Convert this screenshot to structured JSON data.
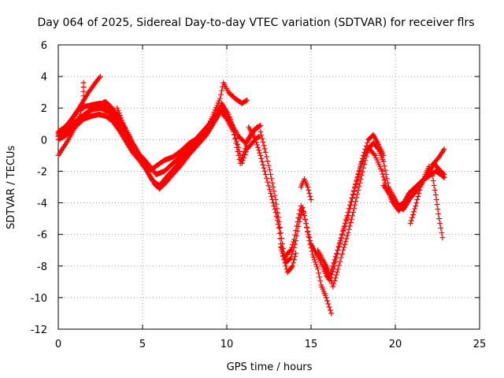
{
  "chart_data": {
    "type": "scatter",
    "title": "Day 064 of 2025, Sidereal Day-to-day VTEC variation (SDTVAR) for receiver flrs",
    "xlabel": "GPS time / hours",
    "ylabel": "SDTVAR / TECUs",
    "xlim": [
      0,
      25
    ],
    "ylim": [
      -12,
      6
    ],
    "xticks": [
      0,
      5,
      10,
      15,
      20,
      25
    ],
    "yticks": [
      -12,
      -10,
      -8,
      -6,
      -4,
      -2,
      0,
      2,
      4,
      6
    ],
    "grid": true,
    "marker": "plus",
    "color": "#ff0000",
    "series": [
      {
        "points": [
          [
            0,
            0.3
          ],
          [
            0.3,
            0.7
          ],
          [
            0.6,
            1.0
          ],
          [
            1.0,
            1.6
          ],
          [
            1.4,
            2.3
          ],
          [
            1.8,
            3.0
          ],
          [
            2.2,
            3.6
          ],
          [
            2.5,
            4.0
          ]
        ]
      },
      {
        "points": [
          [
            0,
            -1.0
          ],
          [
            0.3,
            -0.5
          ],
          [
            0.6,
            0.0
          ],
          [
            1.0,
            0.8
          ],
          [
            1.3,
            1.6
          ],
          [
            1.5,
            2.5
          ],
          [
            1.5,
            3.6
          ]
        ]
      },
      {
        "points": [
          [
            0,
            0.5
          ],
          [
            0.4,
            0.8
          ],
          [
            0.8,
            1.3
          ],
          [
            1.2,
            1.9
          ],
          [
            1.6,
            2.1
          ],
          [
            2.0,
            2.2
          ],
          [
            2.5,
            2.3
          ],
          [
            2.9,
            2.1
          ],
          [
            3.3,
            1.6
          ],
          [
            3.7,
            1.0
          ],
          [
            4.0,
            0.2
          ],
          [
            4.3,
            -0.5
          ],
          [
            4.7,
            -1.0
          ],
          [
            5.1,
            -1.6
          ],
          [
            5.5,
            -1.9
          ],
          [
            5.9,
            -1.6
          ],
          [
            6.3,
            -1.3
          ],
          [
            6.8,
            -1.1
          ],
          [
            7.3,
            -0.7
          ],
          [
            7.8,
            -0.2
          ],
          [
            8.3,
            0.1
          ],
          [
            8.8,
            0.6
          ],
          [
            9.2,
            1.6
          ],
          [
            9.6,
            2.6
          ],
          [
            9.8,
            3.6
          ],
          [
            10.1,
            3.0
          ],
          [
            10.5,
            2.6
          ],
          [
            10.9,
            2.3
          ],
          [
            11.2,
            2.5
          ]
        ]
      },
      {
        "points": [
          [
            0,
            0.0
          ],
          [
            0.5,
            0.3
          ],
          [
            1.0,
            0.8
          ],
          [
            1.5,
            1.3
          ],
          [
            2.0,
            1.5
          ],
          [
            2.4,
            1.6
          ],
          [
            2.8,
            1.5
          ],
          [
            3.2,
            1.2
          ],
          [
            3.6,
            0.6
          ],
          [
            4.0,
            -0.1
          ],
          [
            4.4,
            -0.8
          ],
          [
            4.8,
            -1.3
          ],
          [
            5.2,
            -1.9
          ],
          [
            5.6,
            -2.6
          ],
          [
            6.0,
            -2.9
          ],
          [
            6.4,
            -2.4
          ],
          [
            6.9,
            -1.8
          ],
          [
            7.4,
            -1.2
          ],
          [
            7.9,
            -0.6
          ],
          [
            8.4,
            0.0
          ],
          [
            8.9,
            0.5
          ],
          [
            9.3,
            1.2
          ],
          [
            9.7,
            1.9
          ],
          [
            10.0,
            1.7
          ],
          [
            10.3,
            1.0
          ],
          [
            10.7,
            0.2
          ],
          [
            11.1,
            -0.2
          ],
          [
            11.5,
            0.4
          ],
          [
            11.8,
            0.8
          ]
        ]
      },
      {
        "points": [
          [
            0,
            0.2
          ],
          [
            0.5,
            0.5
          ],
          [
            1.0,
            0.9
          ],
          [
            1.5,
            1.5
          ],
          [
            2.0,
            1.9
          ],
          [
            2.5,
            2.0
          ],
          [
            2.9,
            1.8
          ],
          [
            3.3,
            1.4
          ],
          [
            3.7,
            0.8
          ],
          [
            4.1,
            0.1
          ],
          [
            4.5,
            -0.6
          ],
          [
            4.9,
            -1.3
          ],
          [
            5.3,
            -2.0
          ],
          [
            5.7,
            -2.8
          ],
          [
            6.0,
            -3.1
          ],
          [
            6.4,
            -2.7
          ],
          [
            6.8,
            -2.2
          ],
          [
            7.3,
            -1.6
          ],
          [
            7.8,
            -0.9
          ],
          [
            8.3,
            -0.3
          ],
          [
            8.8,
            0.3
          ],
          [
            9.2,
            1.0
          ],
          [
            9.6,
            1.8
          ],
          [
            10.0,
            1.3
          ],
          [
            10.4,
            0.5
          ],
          [
            10.7,
            -0.5
          ],
          [
            10.9,
            -1.5
          ],
          [
            11.2,
            -0.6
          ],
          [
            11.6,
            -0.1
          ],
          [
            11.9,
            0.2
          ]
        ]
      },
      {
        "points": [
          [
            0,
            0.4
          ],
          [
            0.6,
            0.8
          ],
          [
            1.2,
            1.3
          ],
          [
            1.8,
            1.8
          ],
          [
            2.4,
            2.2
          ],
          [
            2.8,
            2.4
          ],
          [
            3.2,
            2.0
          ],
          [
            3.6,
            1.4
          ],
          [
            4.0,
            0.7
          ],
          [
            4.4,
            -0.2
          ],
          [
            4.8,
            -0.9
          ],
          [
            5.3,
            -1.5
          ],
          [
            5.8,
            -2.2
          ],
          [
            6.3,
            -2.0
          ],
          [
            6.8,
            -1.5
          ],
          [
            7.3,
            -1.0
          ],
          [
            7.8,
            -0.4
          ],
          [
            8.3,
            0.2
          ],
          [
            8.8,
            0.8
          ],
          [
            9.3,
            1.5
          ],
          [
            9.7,
            2.3
          ],
          [
            10.1,
            1.6
          ],
          [
            10.4,
            0.6
          ],
          [
            10.6,
            -0.5
          ],
          [
            10.8,
            -1.5
          ],
          [
            11.2,
            -0.2
          ],
          [
            11.6,
            0.6
          ],
          [
            12.0,
            0.9
          ]
        ]
      },
      {
        "points": [
          [
            3.5,
            2.0
          ],
          [
            4.0,
            0.6
          ],
          [
            4.3,
            0.0
          ],
          [
            4.7,
            -0.8
          ],
          [
            5.0,
            -1.5
          ]
        ]
      },
      {
        "points": [
          [
            11.3,
            0.8
          ],
          [
            11.7,
            0.0
          ],
          [
            12.0,
            -1.0
          ],
          [
            12.3,
            -2.2
          ],
          [
            12.6,
            -3.4
          ],
          [
            12.9,
            -4.6
          ],
          [
            13.1,
            -5.6
          ],
          [
            13.2,
            -6.6
          ],
          [
            13.4,
            -7.6
          ],
          [
            13.6,
            -7.2
          ],
          [
            13.8,
            -7.0
          ],
          [
            14.0,
            -6.3
          ],
          [
            14.2,
            -5.2
          ],
          [
            14.4,
            -4.2
          ],
          [
            14.6,
            -4.8
          ],
          [
            14.8,
            -5.8
          ],
          [
            15.0,
            -6.6
          ],
          [
            15.3,
            -7.2
          ],
          [
            15.6,
            -7.8
          ],
          [
            15.9,
            -8.6
          ],
          [
            16.1,
            -8.9
          ],
          [
            16.4,
            -8.0
          ],
          [
            16.6,
            -7.0
          ],
          [
            16.9,
            -5.8
          ],
          [
            17.2,
            -4.8
          ],
          [
            17.5,
            -3.5
          ],
          [
            17.8,
            -2.2
          ],
          [
            18.1,
            -1.0
          ],
          [
            18.4,
            0.0
          ],
          [
            18.7,
            0.3
          ],
          [
            19.0,
            -0.3
          ],
          [
            19.3,
            -1.0
          ]
        ]
      },
      {
        "points": [
          [
            12.0,
            0.5
          ],
          [
            12.3,
            -0.8
          ],
          [
            12.6,
            -2.2
          ],
          [
            12.9,
            -3.8
          ],
          [
            13.1,
            -5.2
          ],
          [
            13.3,
            -6.6
          ],
          [
            13.5,
            -7.8
          ],
          [
            13.8,
            -7.5
          ],
          [
            14.1,
            -6.4
          ],
          [
            14.3,
            -5.2
          ],
          [
            14.5,
            -4.3
          ],
          [
            14.7,
            -5.3
          ],
          [
            14.9,
            -6.4
          ],
          [
            15.1,
            -7.3
          ],
          [
            15.4,
            -8.2
          ],
          [
            15.6,
            -9.2
          ],
          [
            15.9,
            -10.0
          ],
          [
            16.2,
            -11.0
          ]
        ]
      },
      {
        "points": [
          [
            13.2,
            -6.8
          ],
          [
            13.4,
            -7.6
          ],
          [
            13.6,
            -8.4
          ],
          [
            13.9,
            -8.0
          ],
          [
            14.1,
            -7.2
          ]
        ]
      },
      {
        "points": [
          [
            14.4,
            -3.0
          ],
          [
            14.6,
            -2.5
          ],
          [
            14.8,
            -3.0
          ],
          [
            15.0,
            -3.8
          ]
        ]
      },
      {
        "points": [
          [
            15.4,
            -7.0
          ],
          [
            15.7,
            -7.6
          ],
          [
            16.0,
            -8.2
          ],
          [
            16.3,
            -9.3
          ],
          [
            16.6,
            -8.2
          ],
          [
            16.9,
            -7.0
          ],
          [
            17.2,
            -5.9
          ],
          [
            17.5,
            -4.6
          ],
          [
            17.8,
            -3.2
          ],
          [
            18.1,
            -1.8
          ],
          [
            18.4,
            -0.6
          ],
          [
            18.7,
            -0.2
          ],
          [
            19.0,
            -0.6
          ],
          [
            19.3,
            -1.4
          ],
          [
            19.6,
            -3.0
          ],
          [
            19.9,
            -3.6
          ],
          [
            20.2,
            -4.2
          ],
          [
            20.5,
            -4.0
          ],
          [
            20.8,
            -3.4
          ],
          [
            21.2,
            -3.0
          ],
          [
            21.6,
            -2.6
          ],
          [
            22.0,
            -2.3
          ],
          [
            22.4,
            -2.0
          ],
          [
            22.7,
            -2.2
          ],
          [
            22.9,
            -2.4
          ]
        ]
      },
      {
        "points": [
          [
            15.8,
            -8.0
          ],
          [
            16.1,
            -8.6
          ],
          [
            16.4,
            -7.6
          ],
          [
            16.8,
            -6.2
          ],
          [
            17.2,
            -4.6
          ],
          [
            17.6,
            -3.0
          ],
          [
            18.0,
            -1.5
          ],
          [
            18.4,
            -0.5
          ],
          [
            18.8,
            -1.0
          ],
          [
            19.2,
            -2.0
          ],
          [
            19.5,
            -3.1
          ],
          [
            19.8,
            -3.9
          ],
          [
            20.2,
            -4.5
          ],
          [
            20.6,
            -4.0
          ],
          [
            21.0,
            -3.3
          ],
          [
            21.4,
            -2.8
          ],
          [
            21.8,
            -2.4
          ],
          [
            22.2,
            -1.6
          ],
          [
            22.6,
            -1.1
          ],
          [
            22.9,
            -0.6
          ]
        ]
      },
      {
        "points": [
          [
            19.3,
            -2.9
          ],
          [
            19.7,
            -3.5
          ],
          [
            20.1,
            -4.3
          ],
          [
            20.5,
            -4.4
          ],
          [
            20.9,
            -3.7
          ],
          [
            21.3,
            -3.2
          ],
          [
            21.7,
            -2.5
          ],
          [
            22.0,
            -2.1
          ],
          [
            22.3,
            -1.5
          ],
          [
            22.6,
            -1.9
          ],
          [
            22.9,
            -2.2
          ]
        ]
      },
      {
        "points": [
          [
            20.9,
            -5.3
          ],
          [
            21.2,
            -4.2
          ],
          [
            21.5,
            -3.0
          ],
          [
            21.8,
            -2.2
          ],
          [
            22.0,
            -1.7
          ],
          [
            22.2,
            -2.3
          ],
          [
            22.4,
            -3.5
          ],
          [
            22.6,
            -5.0
          ],
          [
            22.8,
            -6.2
          ]
        ]
      }
    ]
  }
}
